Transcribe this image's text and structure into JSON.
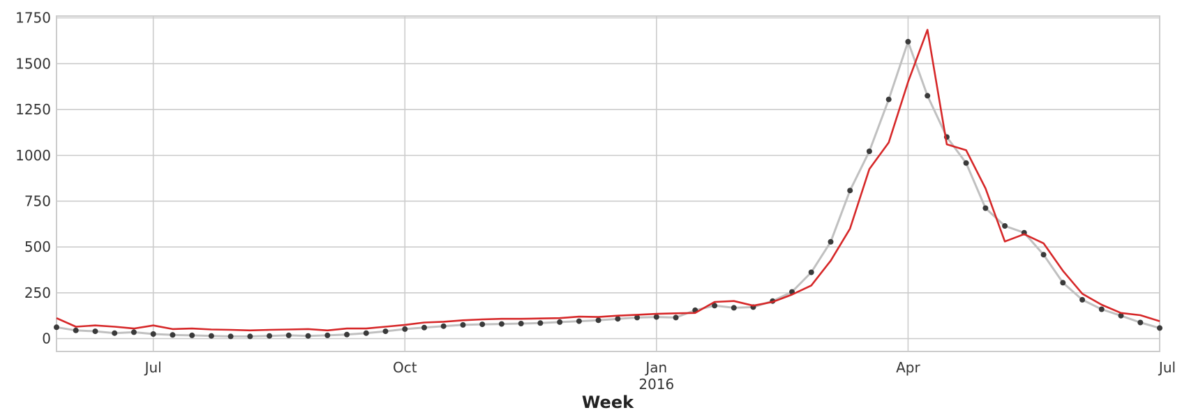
{
  "chart_data": {
    "type": "line",
    "title": "",
    "xlabel": "Week",
    "ylabel": "",
    "x_range": [
      "2015-06-01",
      "2016-07-04"
    ],
    "ylim": [
      -70,
      1760
    ],
    "grid": true,
    "legend": "none",
    "x_ticks": [
      {
        "date": "2015-07-06",
        "label": "Jul",
        "sublabel": ""
      },
      {
        "date": "2015-10-05",
        "label": "Oct",
        "sublabel": ""
      },
      {
        "date": "2016-01-04",
        "label": "Jan",
        "sublabel": "2016"
      },
      {
        "date": "2016-04-04",
        "label": "Apr",
        "sublabel": ""
      },
      {
        "date": "2016-07-04",
        "label": "Jul",
        "sublabel": ""
      }
    ],
    "y_ticks": [
      0,
      250,
      500,
      750,
      1000,
      1250,
      1500,
      1750
    ],
    "x": [
      "2015-06-01",
      "2015-06-08",
      "2015-06-15",
      "2015-06-22",
      "2015-06-29",
      "2015-07-06",
      "2015-07-13",
      "2015-07-20",
      "2015-07-27",
      "2015-08-03",
      "2015-08-10",
      "2015-08-17",
      "2015-08-24",
      "2015-08-31",
      "2015-09-07",
      "2015-09-14",
      "2015-09-21",
      "2015-09-28",
      "2015-10-05",
      "2015-10-12",
      "2015-10-19",
      "2015-10-26",
      "2015-11-02",
      "2015-11-09",
      "2015-11-16",
      "2015-11-23",
      "2015-11-30",
      "2015-12-07",
      "2015-12-14",
      "2015-12-21",
      "2015-12-28",
      "2016-01-04",
      "2016-01-11",
      "2016-01-18",
      "2016-01-25",
      "2016-02-01",
      "2016-02-08",
      "2016-02-15",
      "2016-02-22",
      "2016-02-29",
      "2016-03-07",
      "2016-03-14",
      "2016-03-21",
      "2016-03-28",
      "2016-04-04",
      "2016-04-11",
      "2016-04-18",
      "2016-04-25",
      "2016-05-02",
      "2016-05-09",
      "2016-05-16",
      "2016-05-23",
      "2016-05-30",
      "2016-06-06",
      "2016-06-13",
      "2016-06-20",
      "2016-06-27",
      "2016-07-04"
    ],
    "series": [
      {
        "role": "observed",
        "line_color": "#c0c0c0",
        "marker_color": "#3a3a3a",
        "values": [
          62,
          45,
          40,
          30,
          35,
          25,
          20,
          18,
          15,
          12,
          12,
          15,
          18,
          15,
          18,
          22,
          30,
          40,
          52,
          60,
          68,
          75,
          78,
          80,
          82,
          85,
          90,
          95,
          100,
          108,
          115,
          118,
          115,
          155,
          180,
          168,
          172,
          205,
          255,
          362,
          528,
          808,
          1022,
          1305,
          1620,
          1325,
          1100,
          958,
          712,
          615,
          578,
          458,
          305,
          212,
          160,
          125,
          88,
          58
        ]
      },
      {
        "role": "fitted",
        "line_color": "#d62728",
        "values": [
          112,
          65,
          72,
          65,
          55,
          72,
          52,
          55,
          50,
          48,
          45,
          48,
          50,
          52,
          45,
          55,
          55,
          65,
          75,
          88,
          92,
          100,
          105,
          108,
          108,
          110,
          112,
          120,
          118,
          125,
          130,
          135,
          138,
          140,
          200,
          205,
          180,
          200,
          240,
          290,
          425,
          600,
          925,
          1070,
          1400,
          1685,
          1060,
          1028,
          820,
          530,
          570,
          520,
          370,
          245,
          185,
          140,
          128,
          95
        ]
      }
    ]
  }
}
